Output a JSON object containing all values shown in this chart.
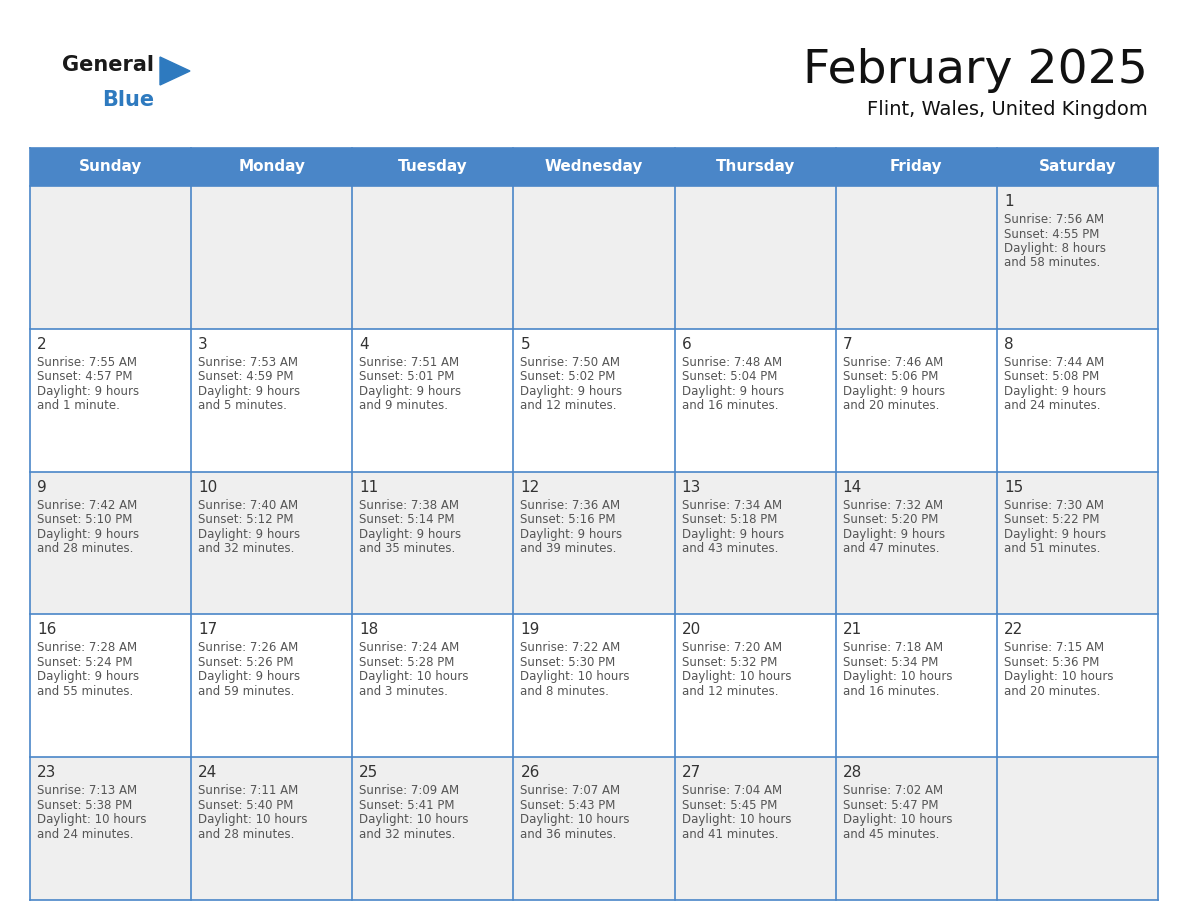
{
  "title": "February 2025",
  "subtitle": "Flint, Wales, United Kingdom",
  "header_bg": "#4a86c8",
  "header_text": "#ffffff",
  "row_bg_odd": "#efefef",
  "row_bg_even": "#ffffff",
  "grid_line_color": "#4a86c8",
  "day_headers": [
    "Sunday",
    "Monday",
    "Tuesday",
    "Wednesday",
    "Thursday",
    "Friday",
    "Saturday"
  ],
  "logo_general_color": "#1a1a1a",
  "logo_blue_color": "#2e7abf",
  "cell_day_color": "#333333",
  "cell_info_color": "#555555",
  "calendar_data": [
    [
      null,
      null,
      null,
      null,
      null,
      null,
      {
        "day": 1,
        "sunrise": "7:56 AM",
        "sunset": "4:55 PM",
        "daylight": "8 hours",
        "daylight2": "and 58 minutes."
      }
    ],
    [
      {
        "day": 2,
        "sunrise": "7:55 AM",
        "sunset": "4:57 PM",
        "daylight": "9 hours",
        "daylight2": "and 1 minute."
      },
      {
        "day": 3,
        "sunrise": "7:53 AM",
        "sunset": "4:59 PM",
        "daylight": "9 hours",
        "daylight2": "and 5 minutes."
      },
      {
        "day": 4,
        "sunrise": "7:51 AM",
        "sunset": "5:01 PM",
        "daylight": "9 hours",
        "daylight2": "and 9 minutes."
      },
      {
        "day": 5,
        "sunrise": "7:50 AM",
        "sunset": "5:02 PM",
        "daylight": "9 hours",
        "daylight2": "and 12 minutes."
      },
      {
        "day": 6,
        "sunrise": "7:48 AM",
        "sunset": "5:04 PM",
        "daylight": "9 hours",
        "daylight2": "and 16 minutes."
      },
      {
        "day": 7,
        "sunrise": "7:46 AM",
        "sunset": "5:06 PM",
        "daylight": "9 hours",
        "daylight2": "and 20 minutes."
      },
      {
        "day": 8,
        "sunrise": "7:44 AM",
        "sunset": "5:08 PM",
        "daylight": "9 hours",
        "daylight2": "and 24 minutes."
      }
    ],
    [
      {
        "day": 9,
        "sunrise": "7:42 AM",
        "sunset": "5:10 PM",
        "daylight": "9 hours",
        "daylight2": "and 28 minutes."
      },
      {
        "day": 10,
        "sunrise": "7:40 AM",
        "sunset": "5:12 PM",
        "daylight": "9 hours",
        "daylight2": "and 32 minutes."
      },
      {
        "day": 11,
        "sunrise": "7:38 AM",
        "sunset": "5:14 PM",
        "daylight": "9 hours",
        "daylight2": "and 35 minutes."
      },
      {
        "day": 12,
        "sunrise": "7:36 AM",
        "sunset": "5:16 PM",
        "daylight": "9 hours",
        "daylight2": "and 39 minutes."
      },
      {
        "day": 13,
        "sunrise": "7:34 AM",
        "sunset": "5:18 PM",
        "daylight": "9 hours",
        "daylight2": "and 43 minutes."
      },
      {
        "day": 14,
        "sunrise": "7:32 AM",
        "sunset": "5:20 PM",
        "daylight": "9 hours",
        "daylight2": "and 47 minutes."
      },
      {
        "day": 15,
        "sunrise": "7:30 AM",
        "sunset": "5:22 PM",
        "daylight": "9 hours",
        "daylight2": "and 51 minutes."
      }
    ],
    [
      {
        "day": 16,
        "sunrise": "7:28 AM",
        "sunset": "5:24 PM",
        "daylight": "9 hours",
        "daylight2": "and 55 minutes."
      },
      {
        "day": 17,
        "sunrise": "7:26 AM",
        "sunset": "5:26 PM",
        "daylight": "9 hours",
        "daylight2": "and 59 minutes."
      },
      {
        "day": 18,
        "sunrise": "7:24 AM",
        "sunset": "5:28 PM",
        "daylight": "10 hours",
        "daylight2": "and 3 minutes."
      },
      {
        "day": 19,
        "sunrise": "7:22 AM",
        "sunset": "5:30 PM",
        "daylight": "10 hours",
        "daylight2": "and 8 minutes."
      },
      {
        "day": 20,
        "sunrise": "7:20 AM",
        "sunset": "5:32 PM",
        "daylight": "10 hours",
        "daylight2": "and 12 minutes."
      },
      {
        "day": 21,
        "sunrise": "7:18 AM",
        "sunset": "5:34 PM",
        "daylight": "10 hours",
        "daylight2": "and 16 minutes."
      },
      {
        "day": 22,
        "sunrise": "7:15 AM",
        "sunset": "5:36 PM",
        "daylight": "10 hours",
        "daylight2": "and 20 minutes."
      }
    ],
    [
      {
        "day": 23,
        "sunrise": "7:13 AM",
        "sunset": "5:38 PM",
        "daylight": "10 hours",
        "daylight2": "and 24 minutes."
      },
      {
        "day": 24,
        "sunrise": "7:11 AM",
        "sunset": "5:40 PM",
        "daylight": "10 hours",
        "daylight2": "and 28 minutes."
      },
      {
        "day": 25,
        "sunrise": "7:09 AM",
        "sunset": "5:41 PM",
        "daylight": "10 hours",
        "daylight2": "and 32 minutes."
      },
      {
        "day": 26,
        "sunrise": "7:07 AM",
        "sunset": "5:43 PM",
        "daylight": "10 hours",
        "daylight2": "and 36 minutes."
      },
      {
        "day": 27,
        "sunrise": "7:04 AM",
        "sunset": "5:45 PM",
        "daylight": "10 hours",
        "daylight2": "and 41 minutes."
      },
      {
        "day": 28,
        "sunrise": "7:02 AM",
        "sunset": "5:47 PM",
        "daylight": "10 hours",
        "daylight2": "and 45 minutes."
      },
      null
    ]
  ]
}
